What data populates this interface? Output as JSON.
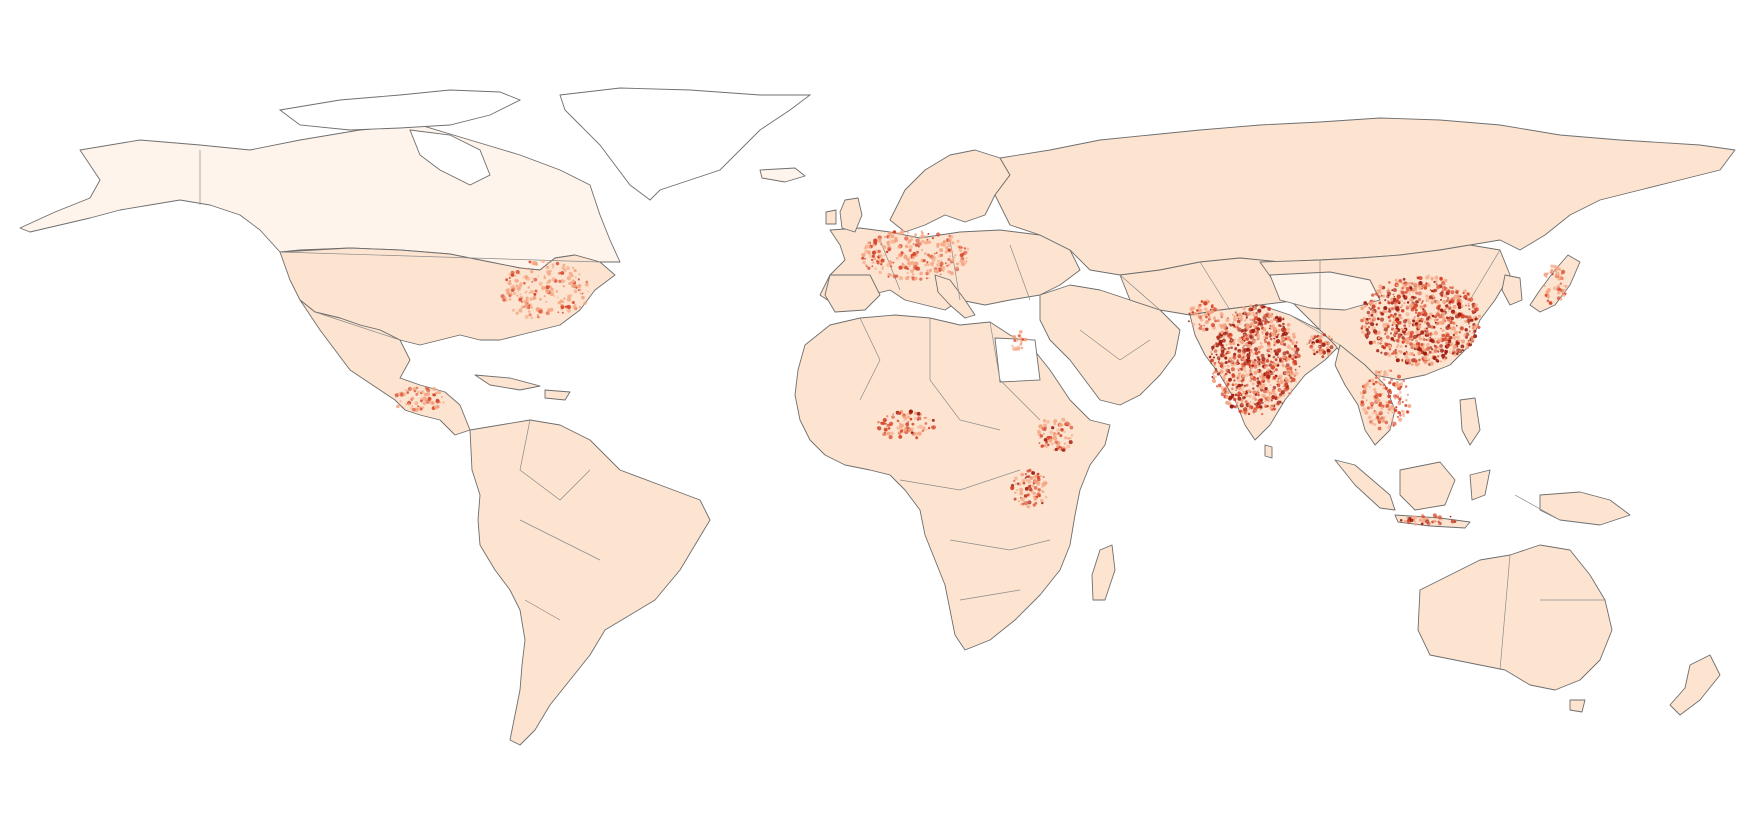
{
  "map": {
    "projection": "equirectangular",
    "style": "choropleth raster over country borders",
    "colors": {
      "background": "#ffffff",
      "land_low": "#fde4d0",
      "land_pale": "#fff4ec",
      "land_mid": "#f4a582",
      "land_high": "#d6452a",
      "land_max": "#9e1a0e",
      "border": "#6e6e6e"
    },
    "hotspot_regions": [
      {
        "name": "india",
        "intensity": 0.95
      },
      {
        "name": "eastern-china",
        "intensity": 0.85
      },
      {
        "name": "bangladesh",
        "intensity": 0.9
      },
      {
        "name": "java",
        "intensity": 0.8
      },
      {
        "name": "nile-delta",
        "intensity": 0.75
      },
      {
        "name": "ethiopian-highlands",
        "intensity": 0.7
      },
      {
        "name": "great-lakes-africa",
        "intensity": 0.75
      },
      {
        "name": "nigeria",
        "intensity": 0.65
      },
      {
        "name": "western-europe",
        "intensity": 0.55
      },
      {
        "name": "central-america",
        "intensity": 0.6
      },
      {
        "name": "japan",
        "intensity": 0.6
      },
      {
        "name": "eastern-usa",
        "intensity": 0.45
      },
      {
        "name": "vietnam-philippines",
        "intensity": 0.6
      },
      {
        "name": "pakistan",
        "intensity": 0.65
      }
    ]
  }
}
